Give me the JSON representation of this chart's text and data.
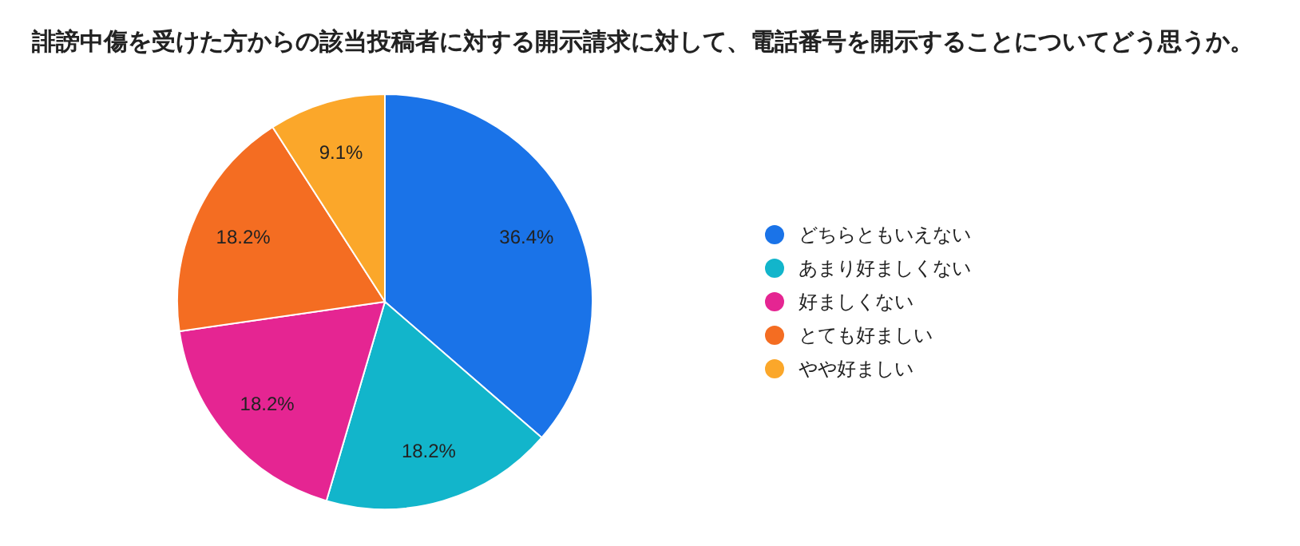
{
  "chart_data": {
    "type": "pie",
    "title": "誹謗中傷を受けた方からの該当投稿者に対する開示請求に対して、電話番号を開示することについてどう思うか。",
    "categories": [
      "どちらともいえない",
      "あまり好ましくない",
      "好ましくない",
      "とても好ましい",
      "やや好ましい"
    ],
    "values": [
      36.4,
      18.2,
      18.2,
      18.2,
      9.1
    ],
    "value_labels": [
      "36.4%",
      "18.2%",
      "18.2%",
      "18.2%",
      "9.1%"
    ],
    "colors": [
      "#1a73e8",
      "#12b5cb",
      "#e52592",
      "#f46d22",
      "#fba72a"
    ],
    "legend": "right"
  }
}
